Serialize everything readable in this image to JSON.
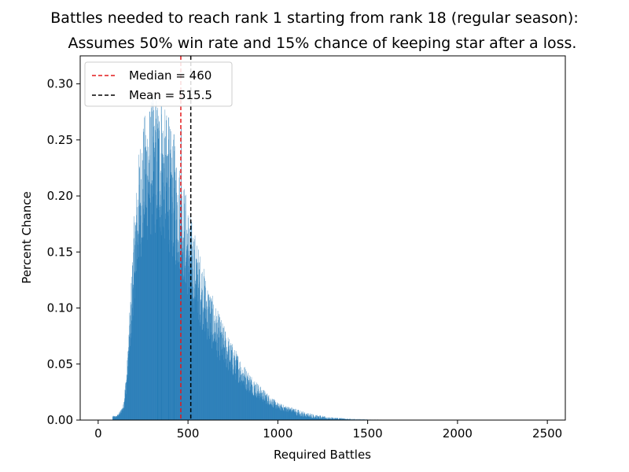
{
  "chart_data": {
    "type": "bar",
    "title_line1": "Battles needed to reach rank 1 starting from rank 18 (regular season):",
    "title_line2": "Assumes 50% win rate and 15% chance of keeping star after a loss.",
    "xlabel": "Required Battles",
    "ylabel": "Percent Chance",
    "xlim": [
      -100,
      2600
    ],
    "ylim": [
      0.0,
      0.325
    ],
    "xticks": [
      {
        "value": 0,
        "label": "0"
      },
      {
        "value": 500,
        "label": "500"
      },
      {
        "value": 1000,
        "label": "1000"
      },
      {
        "value": 1500,
        "label": "1500"
      },
      {
        "value": 2000,
        "label": "2000"
      },
      {
        "value": 2500,
        "label": "2500"
      }
    ],
    "yticks": [
      {
        "value": 0.0,
        "label": "0.00"
      },
      {
        "value": 0.05,
        "label": "0.05"
      },
      {
        "value": 0.1,
        "label": "0.10"
      },
      {
        "value": 0.15,
        "label": "0.15"
      },
      {
        "value": 0.2,
        "label": "0.20"
      },
      {
        "value": 0.25,
        "label": "0.25"
      },
      {
        "value": 0.3,
        "label": "0.30"
      }
    ],
    "bar_color": "#1f77b4",
    "distribution": {
      "x": [
        100,
        120,
        140,
        160,
        180,
        200,
        220,
        240,
        260,
        280,
        300,
        320,
        340,
        360,
        380,
        400,
        420,
        440,
        460,
        480,
        500,
        520,
        540,
        560,
        580,
        600,
        620,
        640,
        660,
        680,
        700,
        720,
        740,
        760,
        780,
        800,
        825,
        850,
        875,
        900,
        925,
        950,
        975,
        1000,
        1050,
        1100,
        1150,
        1200,
        1250,
        1300,
        1350,
        1400,
        1450,
        1500,
        1550,
        1600,
        1700,
        1800,
        1900,
        2000,
        2100,
        2200,
        2300,
        2400,
        2500
      ],
      "y": [
        0.003,
        0.006,
        0.012,
        0.04,
        0.09,
        0.145,
        0.18,
        0.205,
        0.215,
        0.22,
        0.225,
        0.228,
        0.225,
        0.22,
        0.215,
        0.205,
        0.195,
        0.185,
        0.178,
        0.165,
        0.15,
        0.14,
        0.13,
        0.12,
        0.11,
        0.1,
        0.092,
        0.085,
        0.078,
        0.072,
        0.066,
        0.06,
        0.055,
        0.05,
        0.046,
        0.041,
        0.036,
        0.032,
        0.028,
        0.024,
        0.021,
        0.018,
        0.015,
        0.012,
        0.01,
        0.008,
        0.006,
        0.004,
        0.003,
        0.002,
        0.0015,
        0.001,
        0.0008,
        0.0005,
        0.0004,
        0.0003,
        0.0002,
        0.0001,
        0.0001,
        0.0,
        0.0,
        0.0,
        0.0,
        0.0,
        0.0
      ],
      "peak_spikes": [
        {
          "x": 350,
          "y": 0.28
        },
        {
          "x": 390,
          "y": 0.27
        },
        {
          "x": 330,
          "y": 0.26
        },
        {
          "x": 420,
          "y": 0.255
        },
        {
          "x": 460,
          "y": 0.26
        }
      ]
    },
    "reference_lines": [
      {
        "name": "Median = 460",
        "x": 460,
        "color": "#e31a1c",
        "style": "dashed"
      },
      {
        "name": "Mean = 515.5",
        "x": 515.5,
        "color": "#000000",
        "style": "dashed"
      }
    ],
    "legend_position": "upper left",
    "grid": false
  }
}
